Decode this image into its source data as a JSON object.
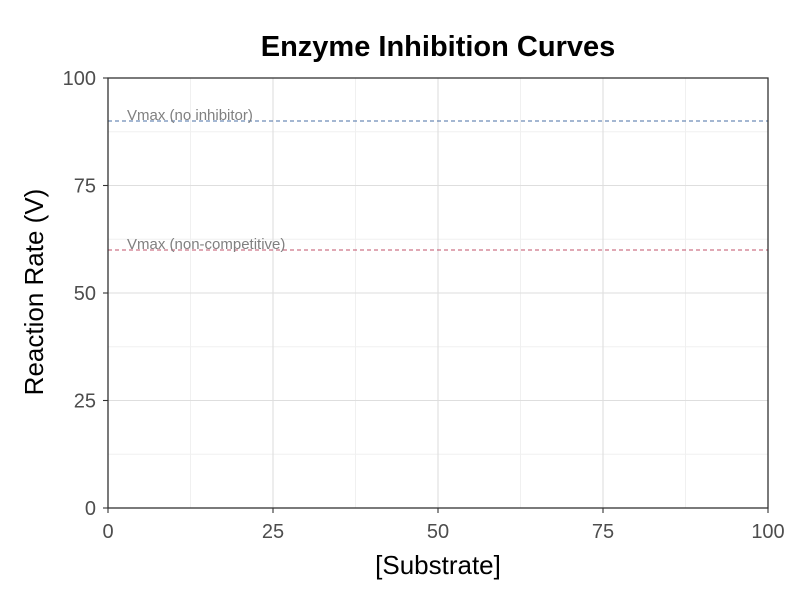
{
  "chart_data": {
    "type": "line",
    "title": "Enzyme Inhibition Curves",
    "xlabel": "[Substrate]",
    "ylabel": "Reaction Rate (V)",
    "xlim": [
      0,
      100
    ],
    "ylim": [
      0,
      100
    ],
    "x_ticks": [
      0,
      25,
      50,
      75,
      100
    ],
    "y_ticks": [
      0,
      25,
      50,
      75,
      100
    ],
    "grid": true,
    "series": [],
    "reference_lines": [
      {
        "label": "Vmax (no inhibitor)",
        "y": 90,
        "color": "#4a6fa5",
        "style": "dashed"
      },
      {
        "label": "Vmax (non-competitive)",
        "y": 60,
        "color": "#c0506a",
        "style": "dashed"
      }
    ]
  }
}
